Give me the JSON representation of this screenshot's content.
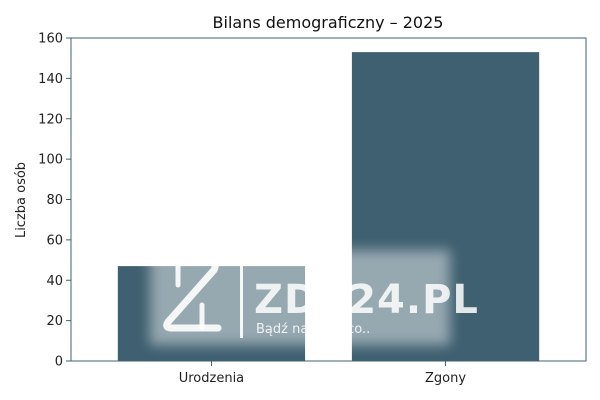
{
  "chart_data": {
    "type": "bar",
    "title": "Bilans demograficzny – 2025",
    "xlabel": "",
    "ylabel": "Liczba osób",
    "categories": [
      "Urodzenia",
      "Zgony"
    ],
    "values": [
      47,
      153
    ],
    "ylim": [
      0,
      160
    ],
    "yticks": [
      0,
      20,
      40,
      60,
      80,
      100,
      120,
      140,
      160
    ],
    "grid": false,
    "legend": "none",
    "bar_color": "#3f6070",
    "axis_color": "#3f6070"
  },
  "watermark": {
    "logo_text": "ZDZ24.PL",
    "tagline": "Bądź na bieżąco..",
    "icon": "zdz24-z-logo-icon"
  }
}
